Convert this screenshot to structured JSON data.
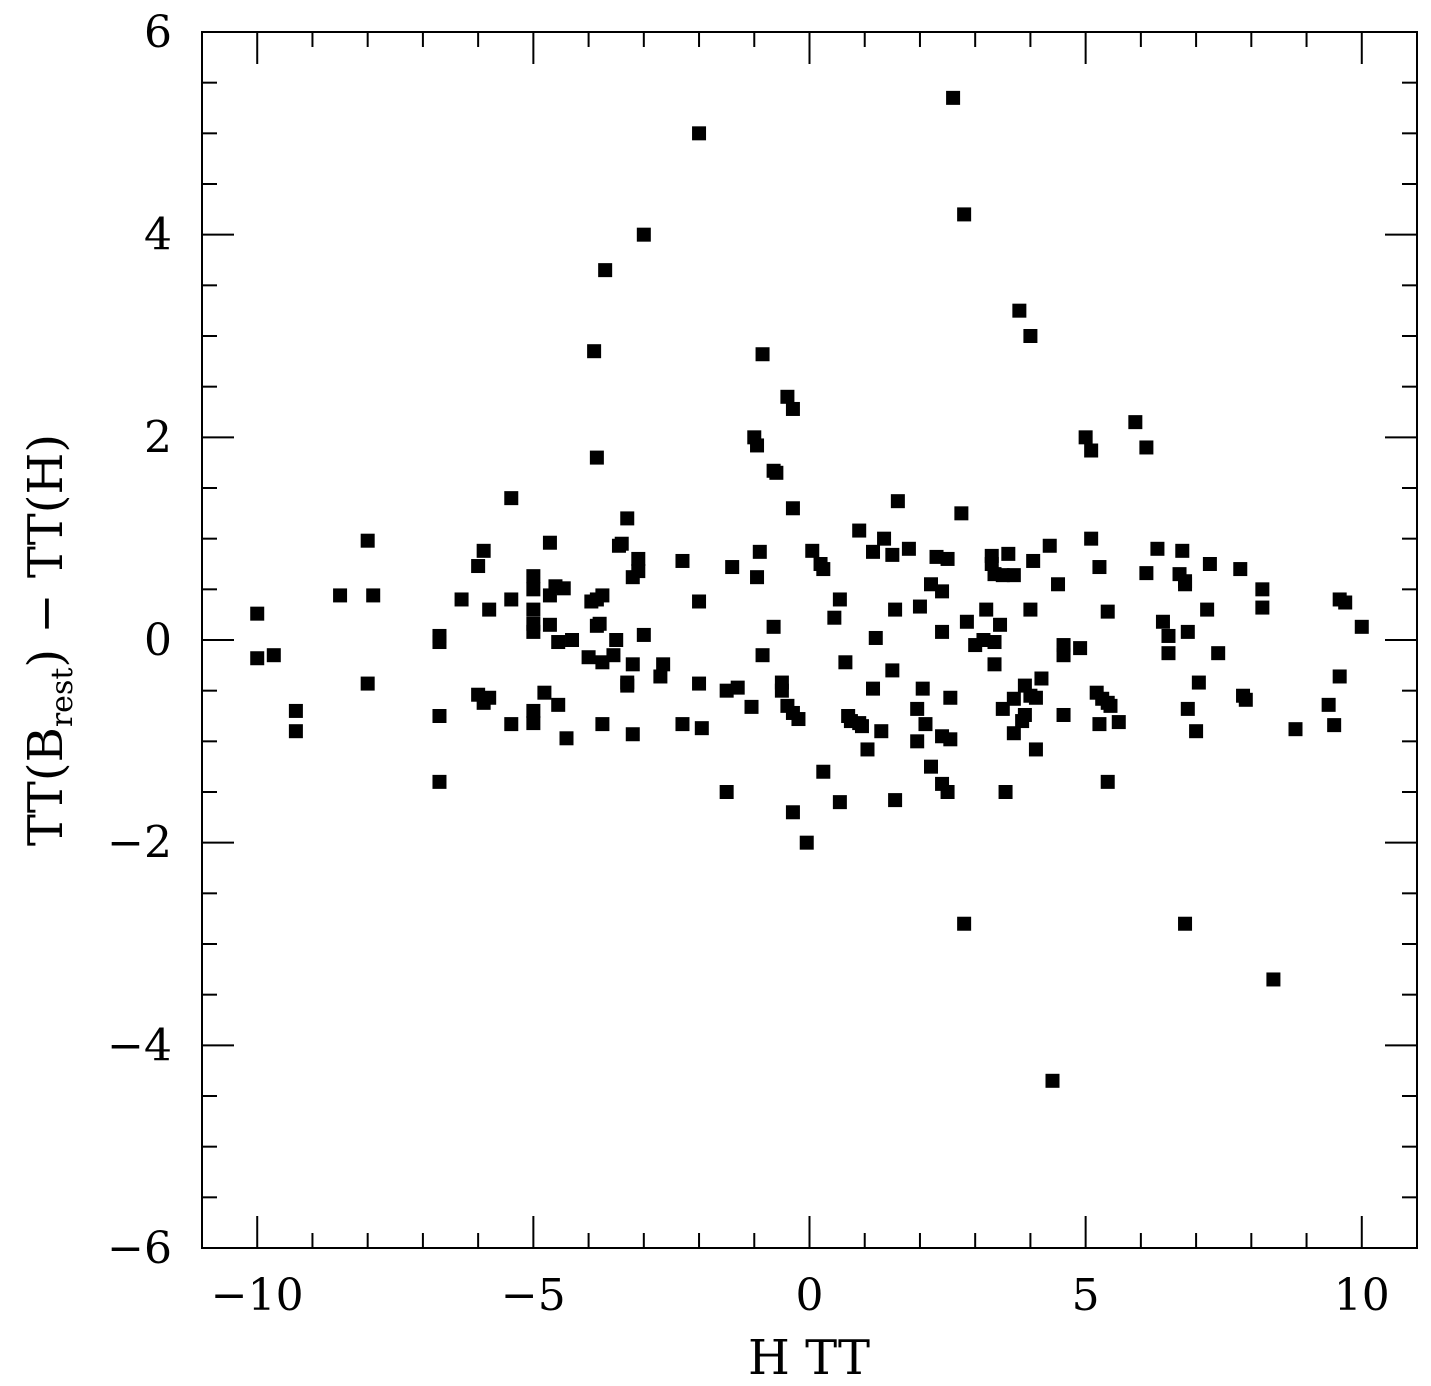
{
  "chart_data": {
    "type": "scatter",
    "xlabel": "H TT",
    "ylabel": {
      "prefix": "TT(B",
      "subscript": "rest",
      "suffix": ")  −  TT(H)"
    },
    "xlim": [
      -11,
      11
    ],
    "ylim": [
      -6,
      6
    ],
    "x_major_ticks": [
      -10,
      -5,
      0,
      5,
      10
    ],
    "x_tick_labels": [
      "−10",
      "−5",
      "0",
      "5",
      "10"
    ],
    "x_minor_step": 1,
    "y_major_ticks": [
      -6,
      -4,
      -2,
      0,
      2,
      4,
      6
    ],
    "y_tick_labels": [
      "−6",
      "−4",
      "−2",
      "0",
      "2",
      "4",
      "6"
    ],
    "y_minor_step": 0.5,
    "grid": false,
    "legend": "none",
    "marker": "square",
    "marker_color": "#000000",
    "points": [
      [
        2.6,
        5.35
      ],
      [
        -2.0,
        5.0
      ],
      [
        2.8,
        4.2
      ],
      [
        -3.0,
        4.0
      ],
      [
        -3.7,
        3.65
      ],
      [
        3.8,
        3.25
      ],
      [
        4.0,
        3.0
      ],
      [
        -3.9,
        2.85
      ],
      [
        -0.85,
        2.82
      ],
      [
        -0.4,
        2.4
      ],
      [
        -0.3,
        2.28
      ],
      [
        5.9,
        2.15
      ],
      [
        -1.0,
        2.0
      ],
      [
        5.0,
        2.0
      ],
      [
        -0.95,
        1.92
      ],
      [
        6.1,
        1.9
      ],
      [
        5.1,
        1.87
      ],
      [
        -3.85,
        1.8
      ],
      [
        -0.65,
        1.67
      ],
      [
        -0.6,
        1.65
      ],
      [
        -5.4,
        1.4
      ],
      [
        1.6,
        1.37
      ],
      [
        -0.3,
        1.3
      ],
      [
        2.75,
        1.25
      ],
      [
        -3.3,
        1.2
      ],
      [
        0.9,
        1.08
      ],
      [
        5.1,
        1.0
      ],
      [
        -8.0,
        0.98
      ],
      [
        1.35,
        1.0
      ],
      [
        -4.7,
        0.96
      ],
      [
        -3.4,
        0.95
      ],
      [
        -3.45,
        0.93
      ],
      [
        4.35,
        0.93
      ],
      [
        -5.9,
        0.88
      ],
      [
        6.3,
        0.9
      ],
      [
        1.8,
        0.9
      ],
      [
        6.75,
        0.88
      ],
      [
        -0.9,
        0.87
      ],
      [
        0.05,
        0.88
      ],
      [
        1.15,
        0.87
      ],
      [
        3.6,
        0.85
      ],
      [
        1.5,
        0.84
      ],
      [
        2.3,
        0.82
      ],
      [
        2.5,
        0.8
      ],
      [
        3.3,
        0.83
      ],
      [
        -3.1,
        0.8
      ],
      [
        -2.3,
        0.78
      ],
      [
        4.05,
        0.78
      ],
      [
        -6.0,
        0.73
      ],
      [
        -1.4,
        0.72
      ],
      [
        5.25,
        0.72
      ],
      [
        7.25,
        0.75
      ],
      [
        7.8,
        0.7
      ],
      [
        0.2,
        0.75
      ],
      [
        3.3,
        0.75
      ],
      [
        0.25,
        0.7
      ],
      [
        -3.1,
        0.68
      ],
      [
        3.35,
        0.65
      ],
      [
        3.5,
        0.64
      ],
      [
        3.7,
        0.64
      ],
      [
        6.1,
        0.66
      ],
      [
        6.7,
        0.65
      ],
      [
        -5.0,
        0.63
      ],
      [
        -3.2,
        0.62
      ],
      [
        -0.95,
        0.62
      ],
      [
        6.8,
        0.58
      ],
      [
        2.2,
        0.55
      ],
      [
        4.5,
        0.55
      ],
      [
        -5.0,
        0.5
      ],
      [
        -4.6,
        0.53
      ],
      [
        -4.45,
        0.51
      ],
      [
        6.8,
        0.55
      ],
      [
        2.4,
        0.48
      ],
      [
        8.2,
        0.5
      ],
      [
        -8.5,
        0.44
      ],
      [
        -7.9,
        0.44
      ],
      [
        -4.7,
        0.44
      ],
      [
        -3.75,
        0.44
      ],
      [
        -6.3,
        0.4
      ],
      [
        -5.4,
        0.4
      ],
      [
        -3.85,
        0.4
      ],
      [
        -3.95,
        0.38
      ],
      [
        -2.0,
        0.38
      ],
      [
        0.55,
        0.4
      ],
      [
        9.6,
        0.4
      ],
      [
        9.7,
        0.37
      ],
      [
        2.0,
        0.33
      ],
      [
        8.2,
        0.32
      ],
      [
        -5.8,
        0.3
      ],
      [
        -5.0,
        0.3
      ],
      [
        1.55,
        0.3
      ],
      [
        3.2,
        0.3
      ],
      [
        4.0,
        0.3
      ],
      [
        7.2,
        0.3
      ],
      [
        5.4,
        0.28
      ],
      [
        -10.0,
        0.26
      ],
      [
        0.45,
        0.22
      ],
      [
        2.85,
        0.18
      ],
      [
        6.4,
        0.18
      ],
      [
        -5.0,
        0.16
      ],
      [
        -4.7,
        0.15
      ],
      [
        -3.8,
        0.16
      ],
      [
        -3.85,
        0.14
      ],
      [
        3.45,
        0.15
      ],
      [
        -0.65,
        0.13
      ],
      [
        10.0,
        0.13
      ],
      [
        -5.0,
        0.08
      ],
      [
        6.85,
        0.08
      ],
      [
        2.4,
        0.08
      ],
      [
        -3.0,
        0.05
      ],
      [
        -6.7,
        0.04
      ],
      [
        6.5,
        0.04
      ],
      [
        -4.3,
        0.0
      ],
      [
        -3.5,
        0.0
      ],
      [
        1.2,
        0.02
      ],
      [
        3.15,
        0.0
      ],
      [
        3.35,
        -0.02
      ],
      [
        -6.7,
        -0.02
      ],
      [
        -4.55,
        -0.02
      ],
      [
        4.6,
        -0.05
      ],
      [
        3.0,
        -0.05
      ],
      [
        4.9,
        -0.08
      ],
      [
        -9.7,
        -0.15
      ],
      [
        -3.55,
        -0.15
      ],
      [
        -0.85,
        -0.15
      ],
      [
        -10.0,
        -0.18
      ],
      [
        -4.0,
        -0.17
      ],
      [
        -3.75,
        -0.22
      ],
      [
        4.6,
        -0.15
      ],
      [
        6.5,
        -0.13
      ],
      [
        7.4,
        -0.13
      ],
      [
        0.65,
        -0.22
      ],
      [
        -3.2,
        -0.24
      ],
      [
        -2.65,
        -0.24
      ],
      [
        3.35,
        -0.24
      ],
      [
        1.5,
        -0.3
      ],
      [
        -2.7,
        -0.36
      ],
      [
        -8.0,
        -0.43
      ],
      [
        -3.3,
        -0.42
      ],
      [
        -3.3,
        -0.45
      ],
      [
        -2.0,
        -0.43
      ],
      [
        -0.5,
        -0.42
      ],
      [
        4.2,
        -0.38
      ],
      [
        9.6,
        -0.36
      ],
      [
        7.05,
        -0.42
      ],
      [
        3.9,
        -0.45
      ],
      [
        -1.3,
        -0.47
      ],
      [
        -1.5,
        -0.5
      ],
      [
        -0.5,
        -0.5
      ],
      [
        2.05,
        -0.48
      ],
      [
        1.15,
        -0.48
      ],
      [
        5.2,
        -0.52
      ],
      [
        -6.0,
        -0.54
      ],
      [
        -4.8,
        -0.52
      ],
      [
        -5.8,
        -0.57
      ],
      [
        4.0,
        -0.55
      ],
      [
        7.85,
        -0.55
      ],
      [
        7.9,
        -0.59
      ],
      [
        5.3,
        -0.58
      ],
      [
        2.55,
        -0.57
      ],
      [
        4.1,
        -0.57
      ],
      [
        -5.9,
        -0.62
      ],
      [
        -4.55,
        -0.64
      ],
      [
        -0.4,
        -0.65
      ],
      [
        3.7,
        -0.58
      ],
      [
        5.4,
        -0.62
      ],
      [
        5.45,
        -0.65
      ],
      [
        -1.05,
        -0.66
      ],
      [
        9.4,
        -0.64
      ],
      [
        6.85,
        -0.68
      ],
      [
        -0.3,
        -0.72
      ],
      [
        3.5,
        -0.68
      ],
      [
        1.95,
        -0.68
      ],
      [
        -9.3,
        -0.7
      ],
      [
        -5.0,
        -0.7
      ],
      [
        -0.2,
        -0.78
      ],
      [
        0.7,
        -0.75
      ],
      [
        -6.7,
        -0.75
      ],
      [
        4.6,
        -0.74
      ],
      [
        3.9,
        -0.74
      ],
      [
        0.75,
        -0.8
      ],
      [
        3.85,
        -0.8
      ],
      [
        0.9,
        -0.82
      ],
      [
        0.95,
        -0.85
      ],
      [
        2.1,
        -0.83
      ],
      [
        -5.4,
        -0.83
      ],
      [
        -5.0,
        -0.82
      ],
      [
        -3.75,
        -0.83
      ],
      [
        -2.3,
        -0.83
      ],
      [
        -1.95,
        -0.87
      ],
      [
        5.25,
        -0.83
      ],
      [
        5.6,
        -0.81
      ],
      [
        9.5,
        -0.84
      ],
      [
        -9.3,
        -0.9
      ],
      [
        1.3,
        -0.9
      ],
      [
        3.7,
        -0.92
      ],
      [
        7.0,
        -0.9
      ],
      [
        8.8,
        -0.88
      ],
      [
        -3.2,
        -0.93
      ],
      [
        -4.4,
        -0.97
      ],
      [
        2.4,
        -0.95
      ],
      [
        2.55,
        -0.98
      ],
      [
        1.95,
        -1.0
      ],
      [
        1.05,
        -1.08
      ],
      [
        4.1,
        -1.08
      ],
      [
        2.2,
        -1.25
      ],
      [
        0.25,
        -1.3
      ],
      [
        -6.7,
        -1.4
      ],
      [
        2.4,
        -1.42
      ],
      [
        5.4,
        -1.4
      ],
      [
        2.5,
        -1.5
      ],
      [
        3.55,
        -1.5
      ],
      [
        -1.5,
        -1.5
      ],
      [
        0.55,
        -1.6
      ],
      [
        1.55,
        -1.58
      ],
      [
        -0.3,
        -1.7
      ],
      [
        -0.05,
        -2.0
      ],
      [
        2.8,
        -2.8
      ],
      [
        6.8,
        -2.8
      ],
      [
        8.4,
        -3.35
      ],
      [
        4.4,
        -4.35
      ]
    ]
  }
}
